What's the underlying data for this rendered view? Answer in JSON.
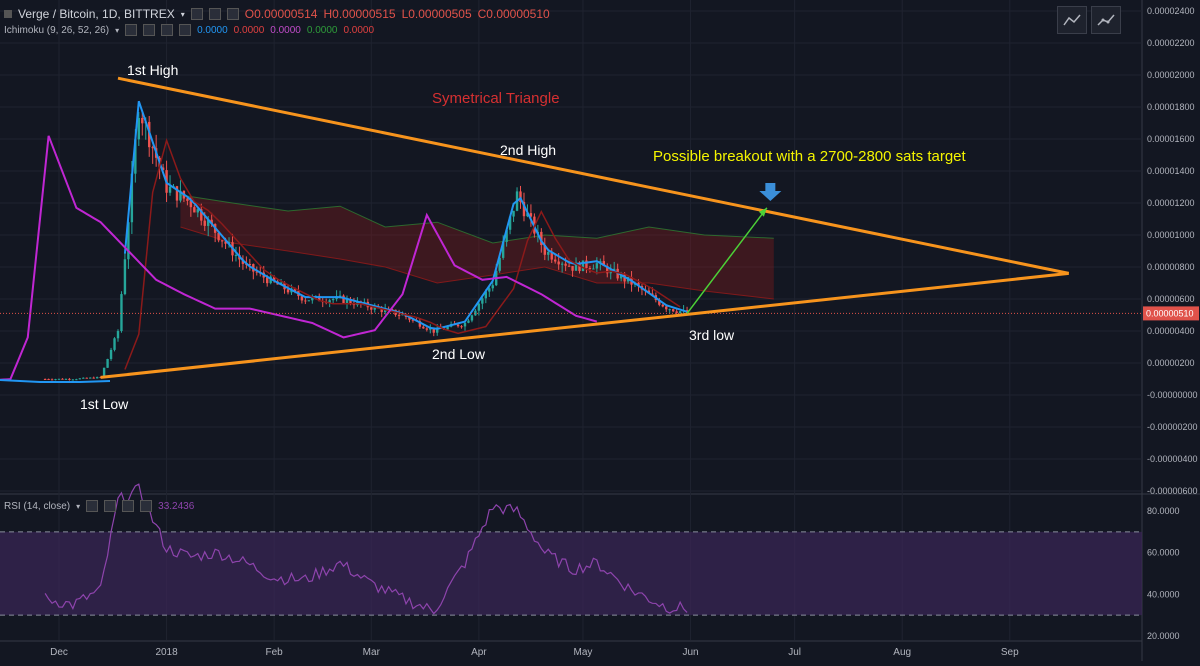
{
  "header": {
    "symbol": "Verge / Bitcoin, 1D, BITTREX",
    "open": "O0.00000514",
    "high": "H0.00000515",
    "low": "L0.00000505",
    "close": "C0.00000510"
  },
  "ichimoku": {
    "label": "Ichimoku (9, 26, 52, 26)",
    "values": [
      {
        "text": "0.0000",
        "color": "#2196f3"
      },
      {
        "text": "0.0000",
        "color": "#e04040"
      },
      {
        "text": "0.0000",
        "color": "#c04bc9"
      },
      {
        "text": "0.0000",
        "color": "#2e9b3a"
      },
      {
        "text": "0.0000",
        "color": "#e04040"
      }
    ]
  },
  "rsi": {
    "label": "RSI (14, close)",
    "value": "33.2436",
    "ticks": [
      "80.0000",
      "60.0000",
      "40.0000",
      "20.0000"
    ]
  },
  "price_axis": {
    "ticks": [
      "0.00002400",
      "0.00002200",
      "0.00002000",
      "0.00001800",
      "0.00001600",
      "0.00001400",
      "0.00001200",
      "0.00001000",
      "0.00000800",
      "0.00000600",
      "0.00000400",
      "0.00000200",
      "-0.00000000",
      "-0.00000200",
      "-0.00000400",
      "-0.00000600"
    ],
    "last_price": "0.00000510"
  },
  "time_axis": [
    "Dec",
    "2018",
    "Feb",
    "Mar",
    "Apr",
    "May",
    "Jun",
    "Jul",
    "Aug",
    "Sep"
  ],
  "annotations": {
    "first_high": "1st High",
    "second_high": "2nd High",
    "first_low": "1st Low",
    "second_low": "2nd Low",
    "third_low": "3rd low",
    "pattern": "Symetrical Triangle",
    "breakout": "Possible breakout with a 2700-2800 sats target"
  },
  "colors": {
    "background": "#131722",
    "up": "#26a69a",
    "down": "#ef5350",
    "tenkan": "#2196f3",
    "kijun": "#8b1a1a",
    "chikou": "#c026d3",
    "cloud_green": "#2e7d32",
    "cloud_red": "#8b1a1a",
    "trendline": "#f7941d",
    "arrow_green": "#4cd137",
    "arrow_blue": "#3b8fd9",
    "rsi_line": "#8e44ad",
    "rsi_band": "#3b2657",
    "pattern_text": "#d63031",
    "breakout_text": "#f5f500"
  },
  "chart_data": [
    {
      "type": "line",
      "title": "Verge / Bitcoin, 1D, BITTREX",
      "xlabel": "",
      "ylabel": "",
      "ylim": [
        -6e-06,
        2.5e-05
      ],
      "x": [
        "2017-11-27",
        "2017-12-05",
        "2017-12-13",
        "2017-12-18",
        "2017-12-24",
        "2018-01-01",
        "2018-01-08",
        "2018-01-16",
        "2018-01-24",
        "2018-02-01",
        "2018-02-10",
        "2018-02-20",
        "2018-03-01",
        "2018-03-10",
        "2018-03-19",
        "2018-03-28",
        "2018-04-05",
        "2018-04-12",
        "2018-04-20",
        "2018-04-28",
        "2018-05-05",
        "2018-05-15",
        "2018-05-25",
        "2018-05-31"
      ],
      "series": [
        {
          "values": [
            1e-06,
            1e-06,
            1.1e-06,
            4e-06,
            1.8e-05,
            1.3e-05,
            1.2e-05,
            1e-05,
            8e-06,
            7e-06,
            6e-06,
            6e-06,
            5.5e-06,
            5e-06,
            4e-06,
            4.5e-06,
            7e-06,
            1.25e-05,
            9e-06,
            8e-06,
            8.2e-06,
            7e-06,
            5.5e-06,
            5.1e-06
          ]
        }
      ],
      "annotations": {
        "trendline_upper": [
          [
            "2017-12-18",
            1.98e-05
          ],
          [
            "2018-09-18",
            7.6e-06
          ]
        ],
        "trendline_lower": [
          [
            "2017-12-13",
            1.1e-06
          ],
          [
            "2018-09-18",
            7.6e-06
          ]
        ],
        "target_arrow": [
          [
            "2018-05-31",
            5.1e-06
          ],
          [
            "2018-06-23",
            1.17e-05
          ]
        ]
      },
      "last_value": 5.1e-06,
      "grid": true
    },
    {
      "type": "line",
      "title": "RSI (14, close)",
      "ylim": [
        15,
        90
      ],
      "bands": [
        30,
        70
      ],
      "x": [
        "2017-11-27",
        "2017-12-05",
        "2017-12-13",
        "2017-12-18",
        "2017-12-24",
        "2018-01-01",
        "2018-01-08",
        "2018-01-16",
        "2018-01-24",
        "2018-02-01",
        "2018-02-10",
        "2018-02-20",
        "2018-03-01",
        "2018-03-10",
        "2018-03-19",
        "2018-03-28",
        "2018-04-05",
        "2018-04-12",
        "2018-04-20",
        "2018-04-28",
        "2018-05-05",
        "2018-05-15",
        "2018-05-25",
        "2018-05-31"
      ],
      "series": [
        {
          "values": [
            38,
            35,
            42,
            85,
            90,
            62,
            58,
            60,
            55,
            48,
            47,
            55,
            45,
            38,
            32,
            55,
            82,
            80,
            60,
            52,
            55,
            42,
            34,
            33.2436
          ]
        }
      ],
      "grid": true
    }
  ]
}
